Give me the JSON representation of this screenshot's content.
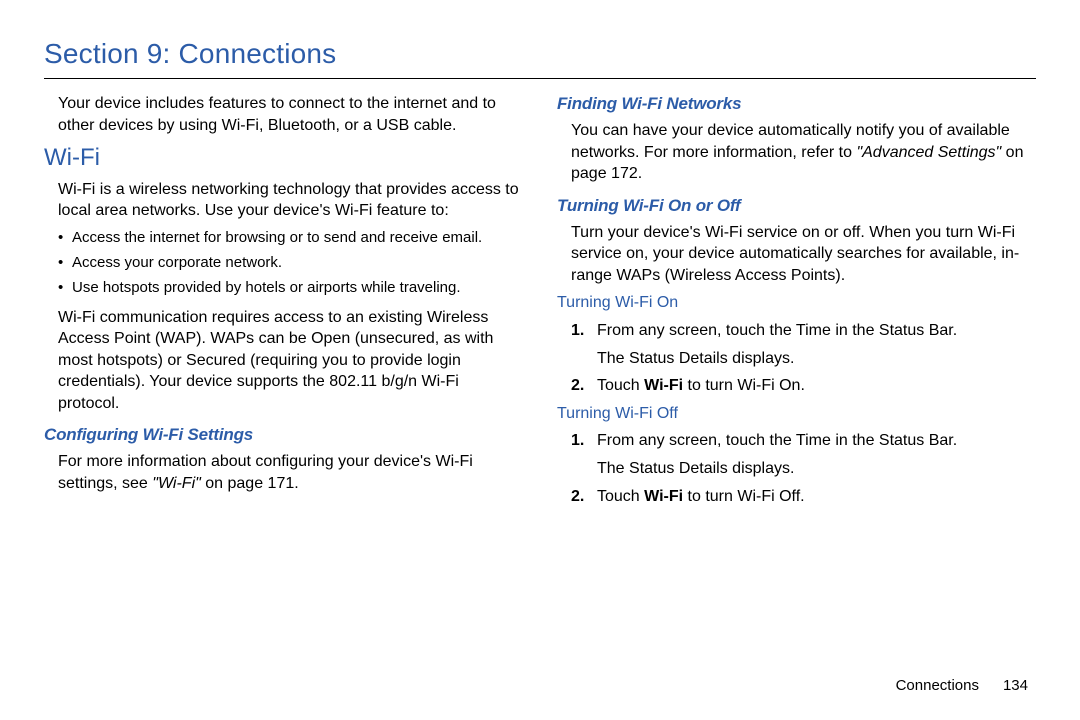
{
  "page": {
    "section_title": "Section 9: Connections",
    "footer_label": "Connections",
    "footer_page": "134"
  },
  "left": {
    "intro": "Your device includes features to connect to the internet and to other devices by using Wi-Fi, Bluetooth, or a USB cable.",
    "wifi_heading": "Wi-Fi",
    "wifi_p1": "Wi-Fi is a wireless networking technology that provides access to local area networks. Use your device's Wi-Fi feature to:",
    "bullets": [
      "Access the internet for browsing or to send and receive email.",
      "Access your corporate network.",
      "Use hotspots provided by hotels or airports while traveling."
    ],
    "wifi_p2": "Wi-Fi communication requires access to an existing Wireless Access Point (WAP). WAPs can be Open (unsecured, as with most hotspots) or Secured (requiring you to provide login credentials). Your device supports the 802.11 b/g/n Wi-Fi protocol.",
    "config_heading": "Configuring Wi-Fi Settings",
    "config_p_a": "For more information about configuring your device's Wi-Fi settings, see ",
    "config_p_italic": "\"Wi-Fi\" ",
    "config_p_b": "on page 171."
  },
  "right": {
    "finding_heading": "Finding Wi-Fi Networks",
    "finding_p_a": "You can have your device automatically notify you of available networks. For more information, refer to ",
    "finding_p_italic": "\"Advanced Settings\" ",
    "finding_p_b": " on page 172.",
    "turning_heading": "Turning Wi-Fi On or Off",
    "turning_p": "Turn your device's Wi-Fi service on or off. When you turn Wi-Fi service on, your device automatically searches for available, in-range WAPs (Wireless Access Points).",
    "on_heading": "Turning Wi-Fi On",
    "on_steps": [
      {
        "num": "1.",
        "text": "From any screen, touch the Time in the Status Bar.",
        "sub": "The Status Details displays."
      },
      {
        "num": "2.",
        "text_a": "Touch ",
        "bold": "Wi-Fi",
        "text_b": " to turn Wi-Fi On."
      }
    ],
    "off_heading": "Turning Wi-Fi Off",
    "off_steps": [
      {
        "num": "1.",
        "text": "From any screen, touch the Time in the Status Bar.",
        "sub": "The Status Details displays."
      },
      {
        "num": "2.",
        "text_a": "Touch ",
        "bold": "Wi-Fi",
        "text_b": " to turn Wi-Fi Off."
      }
    ]
  },
  "colors": {
    "heading_blue": "#2c5ca8",
    "text_black": "#000000",
    "background": "#ffffff"
  },
  "typography": {
    "section_title_size": 28,
    "body_size": 16,
    "subhead_size": 17
  }
}
